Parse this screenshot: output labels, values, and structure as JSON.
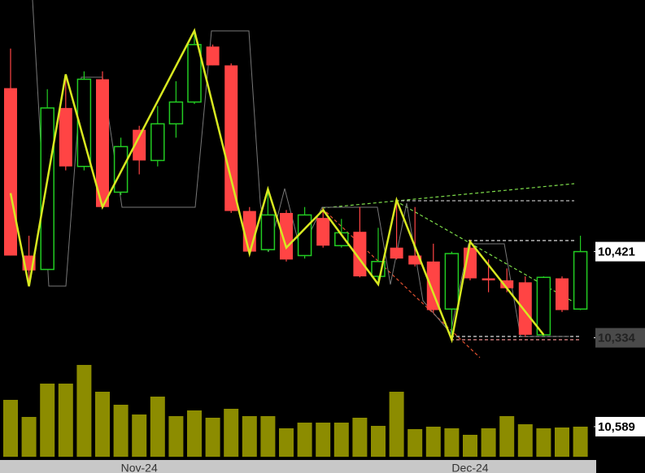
{
  "chart_data": {
    "type": "candlestick",
    "categories": [
      null,
      null,
      null,
      null,
      null,
      null,
      null,
      "Nov-24",
      null,
      null,
      null,
      null,
      null,
      null,
      null,
      null,
      null,
      null,
      null,
      null,
      null,
      null,
      null,
      null,
      null,
      "Dec-24",
      null,
      null,
      null,
      null,
      null,
      null
    ],
    "open": [
      10586,
      10417,
      10403,
      10566,
      10507,
      10595,
      10481,
      10544,
      10513,
      10550,
      10572,
      10628,
      10609,
      10462,
      10423,
      10460,
      10417,
      10455,
      10427,
      10441,
      10396,
      10425,
      10417,
      10411,
      10363,
      10425,
      10394,
      10392,
      10390,
      10337,
      10394,
      10363
    ],
    "high": [
      10626,
      10437,
      10585,
      10597,
      10603,
      10603,
      10536,
      10548,
      10568,
      10593,
      10642,
      10630,
      10611,
      10466,
      10482,
      10463,
      10466,
      10463,
      10454,
      10466,
      10445,
      10470,
      10466,
      10429,
      10421,
      10433,
      10413,
      10404,
      10396,
      10396,
      10396,
      10437
    ],
    "low": [
      10417,
      10392,
      10403,
      10503,
      10503,
      10466,
      10478,
      10499,
      10507,
      10536,
      10570,
      10609,
      10460,
      10419,
      10421,
      10411,
      10414,
      10425,
      10425,
      10395,
      10392,
      10413,
      10406,
      10359,
      10332,
      10392,
      10380,
      10380,
      10335,
      10335,
      10360,
      10362
    ],
    "close": [
      10417,
      10402,
      10566,
      10507,
      10595,
      10466,
      10527,
      10513,
      10550,
      10572,
      10630,
      10609,
      10462,
      10421,
      10458,
      10413,
      10458,
      10427,
      10440,
      10396,
      10411,
      10414,
      10408,
      10362,
      10419,
      10394,
      10392,
      10384,
      10337,
      10395,
      10362,
      10421
    ],
    "volume": [
      20020,
      14014,
      25740,
      25740,
      32318,
      22880,
      18304,
      14872,
      21164,
      14300,
      16302,
      13728,
      16874,
      14300,
      14300,
      10010,
      12012,
      12012,
      12012,
      13728,
      10868,
      22880,
      9724,
      10582,
      10010,
      7722,
      10010,
      14300,
      11440,
      10010,
      10296,
      10589
    ],
    "up_color": "#22cc22",
    "down_color": "#ff4444",
    "volume_color": "#8c8c00",
    "zigzag": {
      "x": [
        0,
        1,
        3,
        5,
        10,
        13,
        14,
        15,
        17,
        20,
        21,
        24,
        25,
        29
      ],
      "values": [
        10480,
        10386,
        10600,
        10466,
        10644,
        10419,
        10484,
        10425,
        10463,
        10388,
        10473,
        10332,
        10431,
        10337
      ],
      "color": "#d8e820"
    },
    "ylim": [
      10314,
      10675
    ],
    "yticks": [
      {
        "value": 10421,
        "label": "10,421"
      },
      {
        "value": 10334,
        "label": "10,334"
      }
    ],
    "volume_lim": [
      0,
      34900
    ],
    "volume_ticks": [
      {
        "value": 10589,
        "label": "10,589"
      }
    ]
  }
}
